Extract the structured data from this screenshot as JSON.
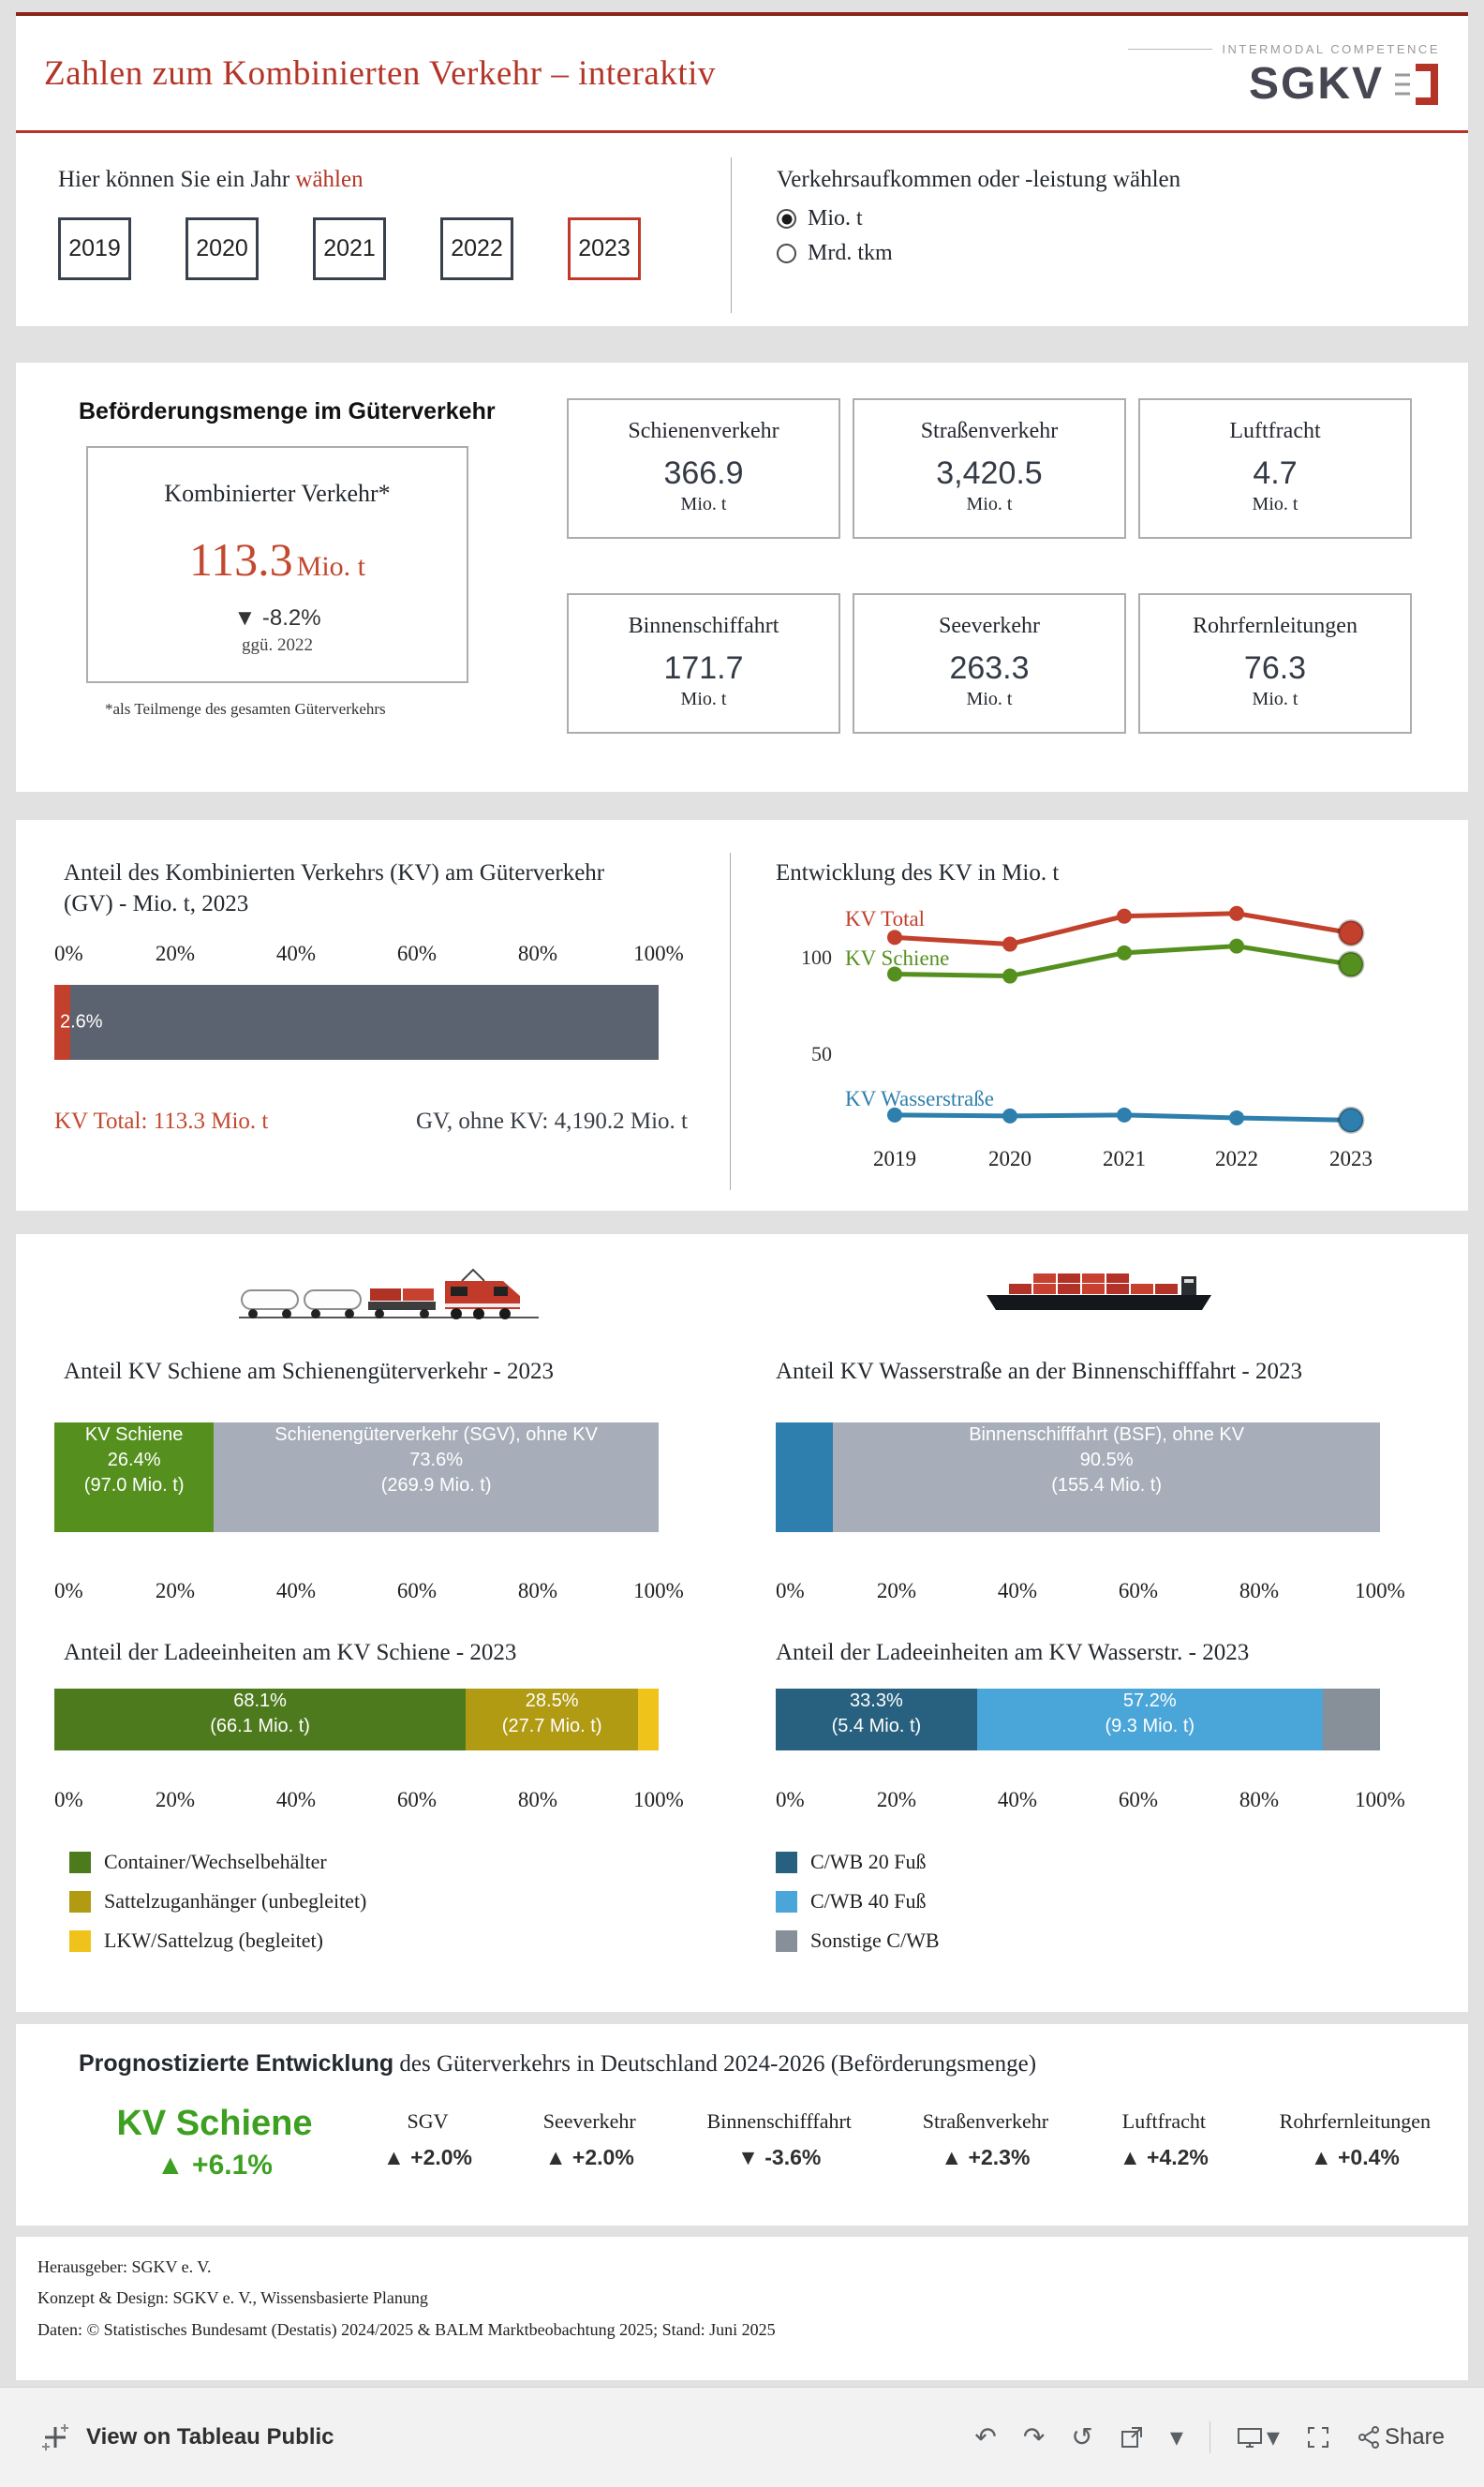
{
  "colors": {
    "brand_red": "#b43527",
    "accent_red": "#c2402c",
    "slate_bar": "#5c6370",
    "gray_bar": "#a7aeb9",
    "green": "#55901f",
    "dark_green_legend": "#4e7a1e",
    "forecast_green": "#3da021",
    "blue": "#2e7fad",
    "dark_blue": "#27617f",
    "light_blue": "#4aa5d8",
    "gray_segment": "#878f99",
    "olive": "#b09b13",
    "yellow": "#efc319"
  },
  "header": {
    "title": "Zahlen zum Kombinierten Verkehr – interaktiv",
    "logo": {
      "tagline": "INTERMODAL COMPETENCE",
      "brand": "SGKV"
    }
  },
  "year_selector": {
    "label_prefix": "Hier können Sie ein Jahr ",
    "label_highlight": "wählen",
    "years": [
      "2019",
      "2020",
      "2021",
      "2022",
      "2023"
    ],
    "selected": "2023"
  },
  "unit_selector": {
    "label": "Verkehrsaufkommen oder -leistung wählen",
    "options": [
      {
        "label": "Mio. t",
        "selected": true
      },
      {
        "label": "Mrd. tkm",
        "selected": false
      }
    ]
  },
  "befoerderung": {
    "heading": "Beförderungsmenge im Güterverkehr",
    "kv_card": {
      "title": "Kombinierter Verkehr*",
      "value": "113.3",
      "unit": "Mio. t",
      "delta": "▼ -8.2%",
      "delta_ref": "ggü. 2022",
      "footnote": "*als Teilmenge des gesamten Güterverkehrs"
    },
    "cards": [
      {
        "title": "Schienenverkehr",
        "value": "366.9",
        "unit": "Mio. t"
      },
      {
        "title": "Straßenverkehr",
        "value": "3,420.5",
        "unit": "Mio. t"
      },
      {
        "title": "Luftfracht",
        "value": "4.7",
        "unit": "Mio. t"
      },
      {
        "title": "Binnenschiffahrt",
        "value": "171.7",
        "unit": "Mio. t"
      },
      {
        "title": "Seeverkehr",
        "value": "263.3",
        "unit": "Mio. t"
      },
      {
        "title": "Rohrfernleitungen",
        "value": "76.3",
        "unit": "Mio. t"
      }
    ]
  },
  "pct_axis": [
    "0%",
    "20%",
    "40%",
    "60%",
    "80%",
    "100%"
  ],
  "chart_data": [
    {
      "id": "kv-anteil-gv",
      "type": "bar",
      "title_lines": [
        "Anteil des Kombinierten Verkehrs (KV) am Güterverkehr",
        "(GV) - Mio. t, 2023"
      ],
      "axis": [
        "0%",
        "20%",
        "40%",
        "60%",
        "80%",
        "100%"
      ],
      "segments": [
        {
          "label": "2.6%",
          "pct": 2.6,
          "color": "#c2402c"
        },
        {
          "label": "",
          "pct": 97.4,
          "color": "#5c6370"
        }
      ],
      "notes": [
        "KV Total: 113.3 Mio. t",
        "GV, ohne KV: 4,190.2 Mio. t"
      ]
    },
    {
      "id": "kv-entwicklung",
      "type": "line",
      "title": "Entwicklung des KV in Mio. t",
      "categories": [
        "2019",
        "2020",
        "2021",
        "2022",
        "2023"
      ],
      "yticks": [
        "100",
        "50"
      ],
      "ylim": [
        0,
        130
      ],
      "legend_position": "inline-left",
      "series": [
        {
          "name": "KV Total",
          "color": "#c2402c",
          "values": [
            111.0,
            107.5,
            122.0,
            123.4,
            113.3
          ]
        },
        {
          "name": "KV Schiene",
          "color": "#55901f",
          "values": [
            92.0,
            91.0,
            103.0,
            106.5,
            97.0
          ]
        },
        {
          "name": "KV Wasserstraße",
          "color": "#2e7fad",
          "values": [
            19.0,
            18.5,
            19.0,
            17.5,
            16.3
          ]
        }
      ]
    },
    {
      "id": "kv-schiene-anteil",
      "type": "bar",
      "title": "Anteil KV Schiene am Schienengüterverkehr - 2023",
      "axis": [
        "0%",
        "20%",
        "40%",
        "60%",
        "80%",
        "100%"
      ],
      "segments": [
        {
          "lines": [
            "KV Schiene",
            "26.4%",
            "(97.0 Mio. t)"
          ],
          "pct": 26.4,
          "color": "#55901f"
        },
        {
          "lines": [
            "Schienengüterverkehr (SGV), ohne KV",
            "73.6%",
            "(269.9 Mio. t)"
          ],
          "pct": 73.6,
          "color": "#a7aeb9"
        }
      ]
    },
    {
      "id": "kv-wasserstrasse-anteil",
      "type": "bar",
      "title": "Anteil KV Wasserstraße an der Binnenschifffahrt - 2023",
      "axis": [
        "0%",
        "20%",
        "40%",
        "60%",
        "80%",
        "100%"
      ],
      "segments": [
        {
          "lines": [],
          "pct": 9.5,
          "color": "#2e7fad"
        },
        {
          "lines": [
            "Binnenschifffahrt (BSF), ohne KV",
            "90.5%",
            "(155.4 Mio. t)"
          ],
          "pct": 90.5,
          "color": "#a7aeb9"
        }
      ]
    },
    {
      "id": "ladeeinheiten-schiene",
      "type": "bar",
      "title": "Anteil der Ladeeinheiten am KV Schiene - 2023",
      "axis": [
        "0%",
        "20%",
        "40%",
        "60%",
        "80%",
        "100%"
      ],
      "segments": [
        {
          "lines": [
            "68.1%",
            "(66.1 Mio. t)"
          ],
          "pct": 68.1,
          "color": "#4e7a1e"
        },
        {
          "lines": [
            "28.5%",
            "(27.7 Mio. t)"
          ],
          "pct": 28.5,
          "color": "#b09b13"
        },
        {
          "lines": [],
          "pct": 3.4,
          "color": "#efc319"
        }
      ]
    },
    {
      "id": "ladeeinheiten-wasserstrasse",
      "type": "bar",
      "title": "Anteil der Ladeeinheiten am KV Wasserstr. - 2023",
      "axis": [
        "0%",
        "20%",
        "40%",
        "60%",
        "80%",
        "100%"
      ],
      "segments": [
        {
          "lines": [
            "33.3%",
            "(5.4 Mio. t)"
          ],
          "pct": 33.3,
          "color": "#27617f"
        },
        {
          "lines": [
            "57.2%",
            "(9.3 Mio. t)"
          ],
          "pct": 57.2,
          "color": "#4aa5d8"
        },
        {
          "lines": [],
          "pct": 9.5,
          "color": "#878f99"
        }
      ]
    }
  ],
  "legends": {
    "schiene": [
      {
        "label": "Container/Wechselbehälter",
        "color": "#4e7a1e"
      },
      {
        "label": "Sattelzuganhänger (unbegleitet)",
        "color": "#b09b13"
      },
      {
        "label": "LKW/Sattelzug (begleitet)",
        "color": "#efc319"
      }
    ],
    "wasser": [
      {
        "label": "C/WB 20 Fuß",
        "color": "#27617f"
      },
      {
        "label": "C/WB 40 Fuß",
        "color": "#4aa5d8"
      },
      {
        "label": "Sonstige C/WB",
        "color": "#878f99"
      }
    ]
  },
  "forecast": {
    "heading_bold": "Prognostizierte Entwicklung",
    "heading_rest": " des Güterverkehrs in Deutschland 2024-2026 (Beförderungsmenge)",
    "highlight": {
      "name": "KV Schiene",
      "delta": "▲ +6.1%"
    },
    "items": [
      {
        "name": "SGV",
        "delta": "▲ +2.0%"
      },
      {
        "name": "Seeverkehr",
        "delta": "▲ +2.0%"
      },
      {
        "name": "Binnenschifffahrt",
        "delta": "▼ -3.6%"
      },
      {
        "name": "Straßenverkehr",
        "delta": "▲ +2.3%"
      },
      {
        "name": "Luftfracht",
        "delta": "▲ +4.2%"
      },
      {
        "name": "Rohrfernleitungen",
        "delta": "▲ +0.4%"
      }
    ]
  },
  "footer": {
    "lines": [
      "Herausgeber: SGKV e. V.",
      "Konzept & Design: SGKV e. V., Wissensbasierte Planung",
      "Daten: © Statistisches Bundesamt (Destatis) 2024/2025 & BALM Marktbeobachtung 2025; Stand: Juni 2025"
    ]
  },
  "toolbar": {
    "view_label": "View on Tableau Public",
    "share_label": "Share"
  }
}
